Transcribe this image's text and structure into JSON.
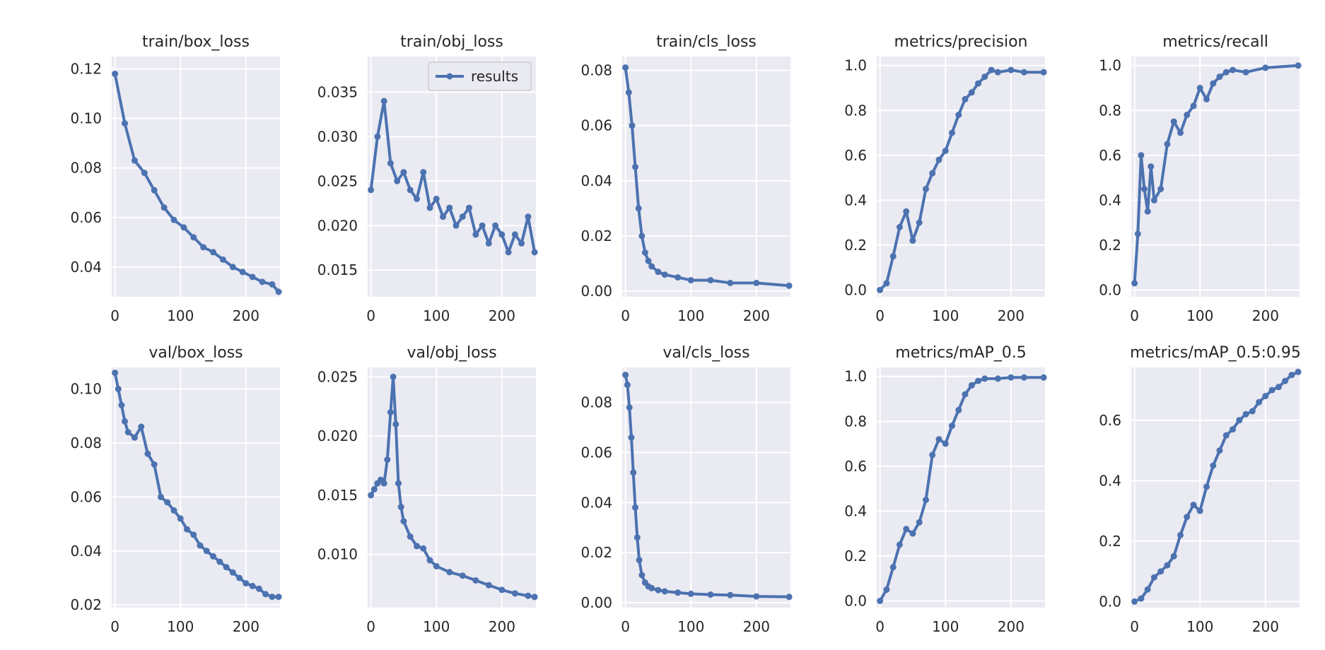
{
  "chart_data": [
    {
      "type": "line",
      "title": "train/box_loss",
      "series_color": "#4c72b0",
      "xlim": [
        -5,
        252
      ],
      "ylim": [
        0.028,
        0.125
      ],
      "xticks": [
        0,
        100,
        200
      ],
      "yticks": [
        0.04,
        0.06,
        0.08,
        0.1,
        0.12
      ],
      "ytick_labels": [
        "0.04",
        "0.06",
        "0.08",
        "0.10",
        "0.12"
      ],
      "x": [
        0,
        15,
        30,
        45,
        60,
        75,
        90,
        105,
        120,
        135,
        150,
        165,
        180,
        195,
        210,
        225,
        240,
        250
      ],
      "y": [
        0.118,
        0.098,
        0.083,
        0.078,
        0.071,
        0.064,
        0.059,
        0.056,
        0.052,
        0.048,
        0.046,
        0.043,
        0.04,
        0.038,
        0.036,
        0.034,
        0.033,
        0.03
      ]
    },
    {
      "type": "line",
      "title": "train/obj_loss",
      "series_color": "#4c72b0",
      "legend": {
        "label": "results",
        "placement": "upper-right"
      },
      "xlim": [
        -5,
        252
      ],
      "ylim": [
        0.012,
        0.039
      ],
      "xticks": [
        0,
        100,
        200
      ],
      "yticks": [
        0.015,
        0.02,
        0.025,
        0.03,
        0.035
      ],
      "ytick_labels": [
        "0.015",
        "0.020",
        "0.025",
        "0.030",
        "0.035"
      ],
      "x": [
        0,
        10,
        20,
        30,
        40,
        50,
        60,
        70,
        80,
        90,
        100,
        110,
        120,
        130,
        140,
        150,
        160,
        170,
        180,
        190,
        200,
        210,
        220,
        230,
        240,
        250
      ],
      "y": [
        0.024,
        0.03,
        0.034,
        0.027,
        0.025,
        0.026,
        0.024,
        0.023,
        0.026,
        0.022,
        0.023,
        0.021,
        0.022,
        0.02,
        0.021,
        0.022,
        0.019,
        0.02,
        0.018,
        0.02,
        0.019,
        0.017,
        0.019,
        0.018,
        0.021,
        0.017
      ]
    },
    {
      "type": "line",
      "title": "train/cls_loss",
      "series_color": "#4c72b0",
      "xlim": [
        -5,
        252
      ],
      "ylim": [
        -0.002,
        0.085
      ],
      "xticks": [
        0,
        100,
        200
      ],
      "yticks": [
        0.0,
        0.02,
        0.04,
        0.06,
        0.08
      ],
      "ytick_labels": [
        "0.00",
        "0.02",
        "0.04",
        "0.06",
        "0.08"
      ],
      "x": [
        0,
        5,
        10,
        15,
        20,
        25,
        30,
        35,
        40,
        50,
        60,
        80,
        100,
        130,
        160,
        200,
        250
      ],
      "y": [
        0.081,
        0.072,
        0.06,
        0.045,
        0.03,
        0.02,
        0.014,
        0.011,
        0.009,
        0.007,
        0.006,
        0.005,
        0.004,
        0.004,
        0.003,
        0.003,
        0.002
      ]
    },
    {
      "type": "line",
      "title": "metrics/precision",
      "series_color": "#4c72b0",
      "xlim": [
        -5,
        252
      ],
      "ylim": [
        -0.03,
        1.04
      ],
      "xticks": [
        0,
        100,
        200
      ],
      "yticks": [
        0.0,
        0.2,
        0.4,
        0.6,
        0.8,
        1.0
      ],
      "ytick_labels": [
        "0.0",
        "0.2",
        "0.4",
        "0.6",
        "0.8",
        "1.0"
      ],
      "x": [
        0,
        10,
        20,
        30,
        40,
        50,
        60,
        70,
        80,
        90,
        100,
        110,
        120,
        130,
        140,
        150,
        160,
        170,
        180,
        200,
        220,
        250
      ],
      "y": [
        0.0,
        0.03,
        0.15,
        0.28,
        0.35,
        0.22,
        0.3,
        0.45,
        0.52,
        0.58,
        0.62,
        0.7,
        0.78,
        0.85,
        0.88,
        0.92,
        0.95,
        0.98,
        0.97,
        0.98,
        0.97,
        0.97
      ]
    },
    {
      "type": "line",
      "title": "metrics/recall",
      "series_color": "#4c72b0",
      "xlim": [
        -5,
        252
      ],
      "ylim": [
        -0.03,
        1.04
      ],
      "xticks": [
        0,
        100,
        200
      ],
      "yticks": [
        0.0,
        0.2,
        0.4,
        0.6,
        0.8,
        1.0
      ],
      "ytick_labels": [
        "0.0",
        "0.2",
        "0.4",
        "0.6",
        "0.8",
        "1.0"
      ],
      "x": [
        0,
        5,
        10,
        15,
        20,
        25,
        30,
        40,
        50,
        60,
        70,
        80,
        90,
        100,
        110,
        120,
        130,
        140,
        150,
        170,
        200,
        250
      ],
      "y": [
        0.03,
        0.25,
        0.6,
        0.45,
        0.35,
        0.55,
        0.4,
        0.45,
        0.65,
        0.75,
        0.7,
        0.78,
        0.82,
        0.9,
        0.85,
        0.92,
        0.95,
        0.97,
        0.98,
        0.97,
        0.99,
        1.0
      ]
    },
    {
      "type": "line",
      "title": "val/box_loss",
      "series_color": "#4c72b0",
      "xlim": [
        -5,
        252
      ],
      "ylim": [
        0.019,
        0.108
      ],
      "xticks": [
        0,
        100,
        200
      ],
      "yticks": [
        0.02,
        0.04,
        0.06,
        0.08,
        0.1
      ],
      "ytick_labels": [
        "0.02",
        "0.04",
        "0.06",
        "0.08",
        "0.10"
      ],
      "x": [
        0,
        5,
        10,
        15,
        20,
        30,
        40,
        50,
        60,
        70,
        80,
        90,
        100,
        110,
        120,
        130,
        140,
        150,
        160,
        170,
        180,
        190,
        200,
        210,
        220,
        230,
        240,
        250
      ],
      "y": [
        0.106,
        0.1,
        0.094,
        0.088,
        0.084,
        0.082,
        0.086,
        0.076,
        0.072,
        0.06,
        0.058,
        0.055,
        0.052,
        0.048,
        0.046,
        0.042,
        0.04,
        0.038,
        0.036,
        0.034,
        0.032,
        0.03,
        0.028,
        0.027,
        0.026,
        0.024,
        0.023,
        0.023
      ]
    },
    {
      "type": "line",
      "title": "val/obj_loss",
      "series_color": "#4c72b0",
      "xlim": [
        -5,
        252
      ],
      "ylim": [
        0.0055,
        0.0258
      ],
      "xticks": [
        0,
        100,
        200
      ],
      "yticks": [
        0.01,
        0.015,
        0.02,
        0.025
      ],
      "ytick_labels": [
        "0.010",
        "0.015",
        "0.020",
        "0.025"
      ],
      "x": [
        0,
        5,
        10,
        15,
        20,
        25,
        30,
        34,
        38,
        42,
        46,
        50,
        60,
        70,
        80,
        90,
        100,
        120,
        140,
        160,
        180,
        200,
        220,
        240,
        250
      ],
      "y": [
        0.015,
        0.0155,
        0.016,
        0.0163,
        0.016,
        0.018,
        0.022,
        0.025,
        0.021,
        0.016,
        0.014,
        0.0128,
        0.0115,
        0.0107,
        0.0105,
        0.0095,
        0.009,
        0.0085,
        0.0082,
        0.0078,
        0.0074,
        0.007,
        0.0067,
        0.0065,
        0.0064
      ]
    },
    {
      "type": "line",
      "title": "val/cls_loss",
      "series_color": "#4c72b0",
      "xlim": [
        -5,
        252
      ],
      "ylim": [
        -0.002,
        0.094
      ],
      "xticks": [
        0,
        100,
        200
      ],
      "yticks": [
        0.0,
        0.02,
        0.04,
        0.06,
        0.08
      ],
      "ytick_labels": [
        "0.00",
        "0.02",
        "0.04",
        "0.06",
        "0.08"
      ],
      "x": [
        0,
        3,
        6,
        9,
        12,
        15,
        18,
        21,
        25,
        30,
        35,
        40,
        50,
        60,
        80,
        100,
        130,
        160,
        200,
        250
      ],
      "y": [
        0.091,
        0.087,
        0.078,
        0.066,
        0.052,
        0.038,
        0.026,
        0.017,
        0.011,
        0.008,
        0.0065,
        0.0058,
        0.005,
        0.0045,
        0.004,
        0.0035,
        0.0032,
        0.003,
        0.0025,
        0.0023
      ]
    },
    {
      "type": "line",
      "title": "metrics/mAP_0.5",
      "series_color": "#4c72b0",
      "xlim": [
        -5,
        252
      ],
      "ylim": [
        -0.03,
        1.04
      ],
      "xticks": [
        0,
        100,
        200
      ],
      "yticks": [
        0.0,
        0.2,
        0.4,
        0.6,
        0.8,
        1.0
      ],
      "ytick_labels": [
        "0.0",
        "0.2",
        "0.4",
        "0.6",
        "0.8",
        "1.0"
      ],
      "x": [
        0,
        10,
        20,
        30,
        40,
        50,
        60,
        70,
        80,
        90,
        100,
        110,
        120,
        130,
        140,
        150,
        160,
        180,
        200,
        220,
        250
      ],
      "y": [
        0.0,
        0.05,
        0.15,
        0.25,
        0.32,
        0.3,
        0.35,
        0.45,
        0.65,
        0.72,
        0.7,
        0.78,
        0.85,
        0.92,
        0.96,
        0.98,
        0.99,
        0.99,
        0.995,
        0.995,
        0.995
      ]
    },
    {
      "type": "line",
      "title": "metrics/mAP_0.5:0.95",
      "series_color": "#4c72b0",
      "xlim": [
        -5,
        252
      ],
      "ylim": [
        -0.02,
        0.775
      ],
      "xticks": [
        0,
        100,
        200
      ],
      "yticks": [
        0.0,
        0.2,
        0.4,
        0.6
      ],
      "ytick_labels": [
        "0.0",
        "0.2",
        "0.4",
        "0.6"
      ],
      "x": [
        0,
        10,
        20,
        30,
        40,
        50,
        60,
        70,
        80,
        90,
        100,
        110,
        120,
        130,
        140,
        150,
        160,
        170,
        180,
        190,
        200,
        210,
        220,
        230,
        240,
        250
      ],
      "y": [
        0.0,
        0.01,
        0.04,
        0.08,
        0.1,
        0.12,
        0.15,
        0.22,
        0.28,
        0.32,
        0.3,
        0.38,
        0.45,
        0.5,
        0.55,
        0.57,
        0.6,
        0.62,
        0.63,
        0.66,
        0.68,
        0.7,
        0.71,
        0.73,
        0.75,
        0.76
      ]
    }
  ]
}
